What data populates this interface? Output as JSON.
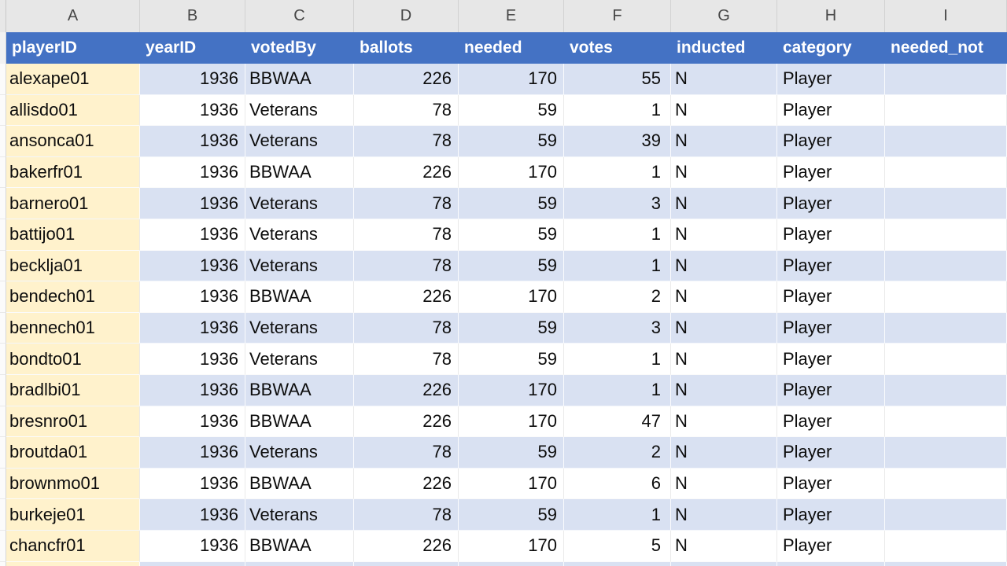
{
  "sheet": {
    "column_letters": [
      "A",
      "B",
      "C",
      "D",
      "E",
      "F",
      "G",
      "H",
      "I"
    ],
    "headers": [
      "playerID",
      "yearID",
      "votedBy",
      "ballots",
      "needed",
      "votes",
      "inducted",
      "category",
      "needed_not"
    ],
    "rows": [
      [
        "alexape01",
        1936,
        "BBWAA",
        226,
        170,
        55,
        "N",
        "Player",
        ""
      ],
      [
        "allisdo01",
        1936,
        "Veterans",
        78,
        59,
        1,
        "N",
        "Player",
        ""
      ],
      [
        "ansonca01",
        1936,
        "Veterans",
        78,
        59,
        39,
        "N",
        "Player",
        ""
      ],
      [
        "bakerfr01",
        1936,
        "BBWAA",
        226,
        170,
        1,
        "N",
        "Player",
        ""
      ],
      [
        "barnero01",
        1936,
        "Veterans",
        78,
        59,
        3,
        "N",
        "Player",
        ""
      ],
      [
        "battijo01",
        1936,
        "Veterans",
        78,
        59,
        1,
        "N",
        "Player",
        ""
      ],
      [
        "becklja01",
        1936,
        "Veterans",
        78,
        59,
        1,
        "N",
        "Player",
        ""
      ],
      [
        "bendech01",
        1936,
        "BBWAA",
        226,
        170,
        2,
        "N",
        "Player",
        ""
      ],
      [
        "bennech01",
        1936,
        "Veterans",
        78,
        59,
        3,
        "N",
        "Player",
        ""
      ],
      [
        "bondto01",
        1936,
        "Veterans",
        78,
        59,
        1,
        "N",
        "Player",
        ""
      ],
      [
        "bradlbi01",
        1936,
        "BBWAA",
        226,
        170,
        1,
        "N",
        "Player",
        ""
      ],
      [
        "bresnro01",
        1936,
        "BBWAA",
        226,
        170,
        47,
        "N",
        "Player",
        ""
      ],
      [
        "broutda01",
        1936,
        "Veterans",
        78,
        59,
        2,
        "N",
        "Player",
        ""
      ],
      [
        "brownmo01",
        1936,
        "BBWAA",
        226,
        170,
        6,
        "N",
        "Player",
        ""
      ],
      [
        "burkeje01",
        1936,
        "Veterans",
        78,
        59,
        1,
        "N",
        "Player",
        ""
      ],
      [
        "chancfr01",
        1936,
        "BBWAA",
        226,
        170,
        5,
        "N",
        "Player",
        ""
      ]
    ],
    "colors": {
      "header_bg": "#4472C4",
      "header_text": "#FFFFFF",
      "band_fill": "#D9E1F2",
      "player_column_fill": "#FFF2CC",
      "column_strip_bg": "#E7E7E7"
    }
  }
}
